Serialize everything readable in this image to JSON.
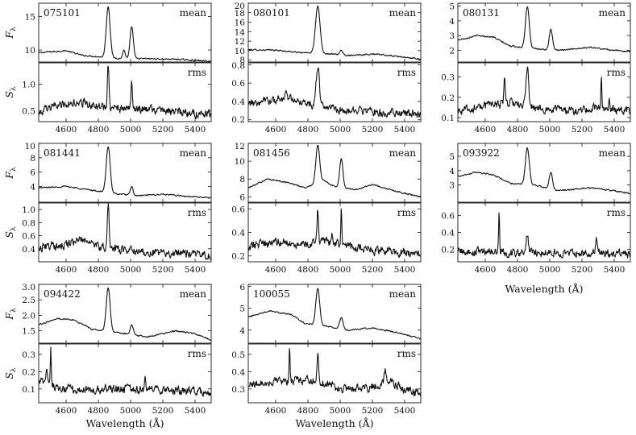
{
  "chart_data": {
    "type": "line",
    "x_range": [
      4430,
      5500
    ],
    "x_ticks": [
      "4600",
      "4800",
      "5000",
      "5200",
      "5400"
    ],
    "x_tick_values": [
      4600,
      4800,
      5000,
      5200,
      5400
    ],
    "mean_ylabel": "Fλ",
    "rms_ylabel": "Sλ",
    "xlabel": "Wavelength (Å)",
    "objects": [
      {
        "name": "075101",
        "mean": {
          "tag": "mean",
          "ylim": [
            8.2,
            17
          ],
          "yticks": [
            10,
            15
          ],
          "ytick_labels": [
            "10",
            "15"
          ],
          "cont": [
            [
              4430,
              9.6
            ],
            [
              4600,
              9.9
            ],
            [
              4700,
              9.2
            ],
            [
              4800,
              9.0
            ],
            [
              4950,
              8.7
            ],
            [
              5100,
              8.7
            ],
            [
              5300,
              8.6
            ],
            [
              5500,
              8.3
            ]
          ],
          "lines": [
            [
              4861,
              16.5,
              12
            ],
            [
              5007,
              13.5,
              10
            ],
            [
              4959,
              10.0,
              8
            ]
          ]
        },
        "rms": {
          "tag": "rms",
          "ylim": [
            0.3,
            1.4
          ],
          "yticks": [
            0.5,
            1.0
          ],
          "ytick_labels": [
            "0.5",
            "1.0"
          ],
          "cont": [
            [
              4430,
              0.45
            ],
            [
              4550,
              0.62
            ],
            [
              4700,
              0.65
            ],
            [
              4850,
              0.55
            ],
            [
              5000,
              0.55
            ],
            [
              5200,
              0.5
            ],
            [
              5500,
              0.44
            ]
          ],
          "lines": [
            [
              4861,
              1.35,
              5
            ],
            [
              5007,
              1.05,
              4
            ]
          ]
        }
      },
      {
        "name": "080101",
        "mean": {
          "tag": "mean",
          "ylim": [
            7.6,
            20
          ],
          "yticks": [
            8,
            10,
            12,
            14,
            16,
            18,
            20
          ],
          "ytick_labels": [
            "8",
            "10",
            "12",
            "14",
            "16",
            "18",
            "20"
          ],
          "cont": [
            [
              4430,
              10.2
            ],
            [
              4600,
              10.1
            ],
            [
              4750,
              9.6
            ],
            [
              4900,
              9.4
            ],
            [
              5050,
              9.0
            ],
            [
              5200,
              9.3
            ],
            [
              5350,
              8.8
            ],
            [
              5500,
              8.2
            ]
          ],
          "lines": [
            [
              4861,
              19.5,
              14
            ],
            [
              5007,
              10.0,
              10
            ]
          ]
        },
        "rms": {
          "tag": "rms",
          "ylim": [
            0.18,
            0.82
          ],
          "yticks": [
            0.2,
            0.4,
            0.6,
            0.8
          ],
          "ytick_labels": [
            "0.2",
            "0.4",
            "0.6",
            "0.8"
          ],
          "cont": [
            [
              4430,
              0.38
            ],
            [
              4550,
              0.4
            ],
            [
              4680,
              0.43
            ],
            [
              4800,
              0.36
            ],
            [
              4950,
              0.32
            ],
            [
              5100,
              0.3
            ],
            [
              5300,
              0.28
            ],
            [
              5500,
              0.26
            ]
          ],
          "lines": [
            [
              4861,
              0.78,
              10
            ],
            [
              4660,
              0.48,
              8
            ]
          ]
        }
      },
      {
        "name": "080131",
        "mean": {
          "tag": "mean",
          "ylim": [
            1.2,
            5.2
          ],
          "yticks": [
            2,
            3,
            4,
            5
          ],
          "ytick_labels": [
            "2",
            "3",
            "4",
            "5"
          ],
          "cont": [
            [
              4430,
              2.7
            ],
            [
              4550,
              3.0
            ],
            [
              4650,
              2.9
            ],
            [
              4750,
              2.3
            ],
            [
              4900,
              2.1
            ],
            [
              5050,
              2.0
            ],
            [
              5250,
              2.2
            ],
            [
              5400,
              2.0
            ],
            [
              5500,
              1.9
            ]
          ],
          "lines": [
            [
              4861,
              5.0,
              12
            ],
            [
              5007,
              3.4,
              10
            ]
          ]
        },
        "rms": {
          "tag": "rms",
          "ylim": [
            0.08,
            0.37
          ],
          "yticks": [
            0.1,
            0.2,
            0.3
          ],
          "ytick_labels": [
            "0.1",
            "0.2",
            "0.3"
          ],
          "cont": [
            [
              4430,
              0.13
            ],
            [
              4600,
              0.16
            ],
            [
              4750,
              0.17
            ],
            [
              4900,
              0.15
            ],
            [
              5100,
              0.13
            ],
            [
              5300,
              0.15
            ],
            [
              5500,
              0.13
            ]
          ],
          "lines": [
            [
              4720,
              0.3,
              4
            ],
            [
              4760,
              0.22,
              4
            ],
            [
              4861,
              0.35,
              8
            ],
            [
              5320,
              0.3,
              3
            ],
            [
              5370,
              0.2,
              3
            ]
          ]
        }
      },
      {
        "name": "081441",
        "mean": {
          "tag": "mean",
          "ylim": [
            1.8,
            10
          ],
          "yticks": [
            4,
            6,
            8,
            10
          ],
          "ytick_labels": [
            "4",
            "6",
            "8",
            "10"
          ],
          "cont": [
            [
              4430,
              3.8
            ],
            [
              4600,
              4.0
            ],
            [
              4750,
              3.5
            ],
            [
              4900,
              3.0
            ],
            [
              5050,
              2.7
            ],
            [
              5200,
              2.9
            ],
            [
              5350,
              2.6
            ],
            [
              5500,
              2.4
            ]
          ],
          "lines": [
            [
              4861,
              9.6,
              12
            ],
            [
              5007,
              4.0,
              8
            ]
          ]
        },
        "rms": {
          "tag": "rms",
          "ylim": [
            0.2,
            1.1
          ],
          "yticks": [
            0.4,
            0.6,
            0.8,
            1.0
          ],
          "ytick_labels": [
            "0.4",
            "0.6",
            "0.8",
            "1.0"
          ],
          "cont": [
            [
              4430,
              0.42
            ],
            [
              4600,
              0.46
            ],
            [
              4690,
              0.58
            ],
            [
              4780,
              0.45
            ],
            [
              4950,
              0.38
            ],
            [
              5150,
              0.35
            ],
            [
              5350,
              0.32
            ],
            [
              5500,
              0.3
            ]
          ],
          "lines": [
            [
              4861,
              1.05,
              6
            ]
          ]
        }
      },
      {
        "name": "081456",
        "mean": {
          "tag": "mean",
          "ylim": [
            5.4,
            12
          ],
          "yticks": [
            6,
            8,
            10,
            12
          ],
          "ytick_labels": [
            "6",
            "8",
            "10",
            "12"
          ],
          "cont": [
            [
              4430,
              7.0
            ],
            [
              4550,
              8.0
            ],
            [
              4680,
              7.6
            ],
            [
              4780,
              7.0
            ],
            [
              4900,
              7.8
            ],
            [
              4960,
              7.2
            ],
            [
              5100,
              6.8
            ],
            [
              5200,
              7.4
            ],
            [
              5350,
              6.6
            ],
            [
              5500,
              6.0
            ]
          ],
          "lines": [
            [
              4861,
              11.8,
              12
            ],
            [
              5007,
              10.3,
              10
            ]
          ]
        },
        "rms": {
          "tag": "rms",
          "ylim": [
            0.15,
            0.65
          ],
          "yticks": [
            0.2,
            0.4,
            0.6
          ],
          "ytick_labels": [
            "0.2",
            "0.4",
            "0.6"
          ],
          "cont": [
            [
              4430,
              0.28
            ],
            [
              4600,
              0.32
            ],
            [
              4750,
              0.3
            ],
            [
              4900,
              0.33
            ],
            [
              5050,
              0.28
            ],
            [
              5250,
              0.24
            ],
            [
              5500,
              0.22
            ]
          ],
          "lines": [
            [
              4861,
              0.6,
              4
            ],
            [
              5007,
              0.62,
              3
            ],
            [
              4950,
              0.4,
              3
            ]
          ]
        }
      },
      {
        "name": "093922",
        "mean": {
          "tag": "mean",
          "ylim": [
            1.8,
            5.9
          ],
          "yticks": [
            3,
            4,
            5
          ],
          "ytick_labels": [
            "3",
            "4",
            "5"
          ],
          "cont": [
            [
              4430,
              3.6
            ],
            [
              4550,
              3.9
            ],
            [
              4650,
              3.7
            ],
            [
              4760,
              3.1
            ],
            [
              4900,
              3.0
            ],
            [
              5050,
              2.6
            ],
            [
              5250,
              2.8
            ],
            [
              5400,
              2.6
            ],
            [
              5500,
              2.4
            ]
          ],
          "lines": [
            [
              4861,
              5.6,
              12
            ],
            [
              5007,
              3.9,
              10
            ]
          ]
        },
        "rms": {
          "tag": "rms",
          "ylim": [
            0.05,
            0.75
          ],
          "yticks": [
            0.2,
            0.4,
            0.6
          ],
          "ytick_labels": [
            "0.2",
            "0.4",
            "0.6"
          ],
          "cont": [
            [
              4430,
              0.18
            ],
            [
              4600,
              0.17
            ],
            [
              4750,
              0.16
            ],
            [
              4900,
              0.16
            ],
            [
              5100,
              0.15
            ],
            [
              5300,
              0.16
            ],
            [
              5500,
              0.13
            ]
          ],
          "lines": [
            [
              4686,
              0.7,
              3
            ],
            [
              4861,
              0.38,
              6
            ],
            [
              5290,
              0.34,
              5
            ]
          ]
        }
      },
      {
        "name": "094422",
        "mean": {
          "tag": "mean",
          "ylim": [
            1.1,
            3.0
          ],
          "yticks": [
            1.5,
            2.0,
            2.5,
            3.0
          ],
          "ytick_labels": [
            "1.5",
            "2.0",
            "2.5",
            "3.0"
          ],
          "cont": [
            [
              4430,
              1.7
            ],
            [
              4550,
              1.9
            ],
            [
              4650,
              1.85
            ],
            [
              4760,
              1.55
            ],
            [
              4900,
              1.45
            ],
            [
              5100,
              1.3
            ],
            [
              5280,
              1.5
            ],
            [
              5400,
              1.4
            ],
            [
              5500,
              1.2
            ]
          ],
          "lines": [
            [
              4861,
              2.9,
              12
            ],
            [
              5007,
              1.7,
              10
            ]
          ]
        },
        "rms": {
          "tag": "rms",
          "ylim": [
            0.02,
            0.36
          ],
          "yticks": [
            0.1,
            0.2,
            0.3
          ],
          "ytick_labels": [
            "0.1",
            "0.2",
            "0.3"
          ],
          "cont": [
            [
              4430,
              0.15
            ],
            [
              4550,
              0.1
            ],
            [
              4700,
              0.1
            ],
            [
              4900,
              0.1
            ],
            [
              5100,
              0.1
            ],
            [
              5300,
              0.09
            ],
            [
              5500,
              0.08
            ]
          ],
          "lines": [
            [
              4480,
              0.24,
              5
            ],
            [
              4505,
              0.33,
              3
            ],
            [
              5090,
              0.2,
              3
            ]
          ]
        }
      },
      {
        "name": "100055",
        "mean": {
          "tag": "mean",
          "ylim": [
            3.4,
            6.1
          ],
          "yticks": [
            4,
            5,
            6
          ],
          "ytick_labels": [
            "4",
            "5",
            "6"
          ],
          "cont": [
            [
              4430,
              4.6
            ],
            [
              4560,
              4.9
            ],
            [
              4700,
              4.7
            ],
            [
              4780,
              4.3
            ],
            [
              4900,
              4.2
            ],
            [
              5050,
              4.0
            ],
            [
              5200,
              4.1
            ],
            [
              5350,
              3.9
            ],
            [
              5500,
              3.6
            ]
          ],
          "lines": [
            [
              4861,
              5.9,
              12
            ],
            [
              5007,
              4.6,
              10
            ]
          ]
        },
        "rms": {
          "tag": "rms",
          "ylim": [
            0.22,
            0.56
          ],
          "yticks": [
            0.3,
            0.4,
            0.5
          ],
          "ytick_labels": [
            "0.3",
            "0.4",
            "0.5"
          ],
          "cont": [
            [
              4430,
              0.32
            ],
            [
              4550,
              0.34
            ],
            [
              4700,
              0.35
            ],
            [
              4850,
              0.35
            ],
            [
              5000,
              0.3
            ],
            [
              5200,
              0.31
            ],
            [
              5300,
              0.35
            ],
            [
              5400,
              0.3
            ],
            [
              5500,
              0.27
            ]
          ],
          "lines": [
            [
              4686,
              0.53,
              3
            ],
            [
              4861,
              0.5,
              5
            ],
            [
              5280,
              0.42,
              6
            ]
          ]
        }
      }
    ]
  }
}
